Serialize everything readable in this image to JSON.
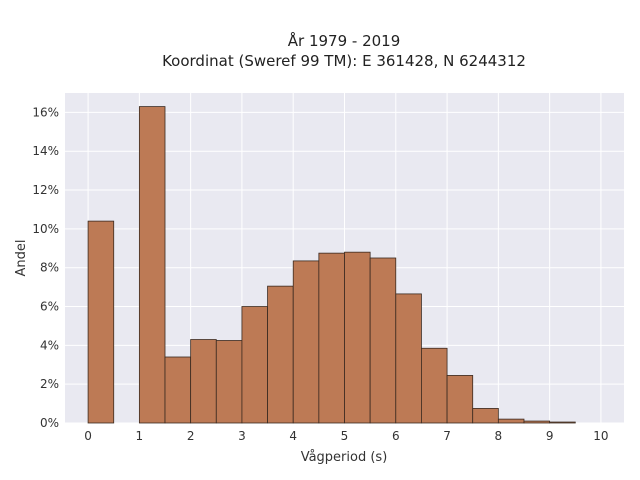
{
  "chart_data": {
    "type": "bar",
    "title": [
      "År 1979 - 2019",
      "Koordinat (Sweref 99 TM): E 361428, N 6244312"
    ],
    "xlabel": "Vågperiod (s)",
    "ylabel": "Andel",
    "bin_width": 0.5,
    "bins": [
      {
        "x0": 0.0,
        "value": 10.4
      },
      {
        "x0": 0.5,
        "value": 0.0
      },
      {
        "x0": 1.0,
        "value": 16.3
      },
      {
        "x0": 1.5,
        "value": 3.4
      },
      {
        "x0": 2.0,
        "value": 4.3
      },
      {
        "x0": 2.5,
        "value": 4.25
      },
      {
        "x0": 3.0,
        "value": 6.0
      },
      {
        "x0": 3.5,
        "value": 7.05
      },
      {
        "x0": 4.0,
        "value": 8.35
      },
      {
        "x0": 4.5,
        "value": 8.75
      },
      {
        "x0": 5.0,
        "value": 8.8
      },
      {
        "x0": 5.5,
        "value": 8.5
      },
      {
        "x0": 6.0,
        "value": 6.65
      },
      {
        "x0": 6.5,
        "value": 3.85
      },
      {
        "x0": 7.0,
        "value": 2.45
      },
      {
        "x0": 7.5,
        "value": 0.75
      },
      {
        "x0": 8.0,
        "value": 0.2
      },
      {
        "x0": 8.5,
        "value": 0.1
      },
      {
        "x0": 9.0,
        "value": 0.05
      }
    ],
    "xlim": [
      -0.45,
      10.45
    ],
    "ylim": [
      0,
      17
    ],
    "xticks": [
      0,
      1,
      2,
      3,
      4,
      5,
      6,
      7,
      8,
      9,
      10
    ],
    "yticks": [
      0,
      2,
      4,
      6,
      8,
      10,
      12,
      14,
      16
    ],
    "ytick_labels": [
      "0%",
      "2%",
      "4%",
      "6%",
      "8%",
      "10%",
      "12%",
      "14%",
      "16%"
    ],
    "grid": true,
    "legend": "none",
    "colors": {
      "bar": "#bd7a55",
      "bar_edge": "#3a2a20",
      "plot_bg": "#e9e9f1",
      "grid": "#ffffff"
    }
  }
}
